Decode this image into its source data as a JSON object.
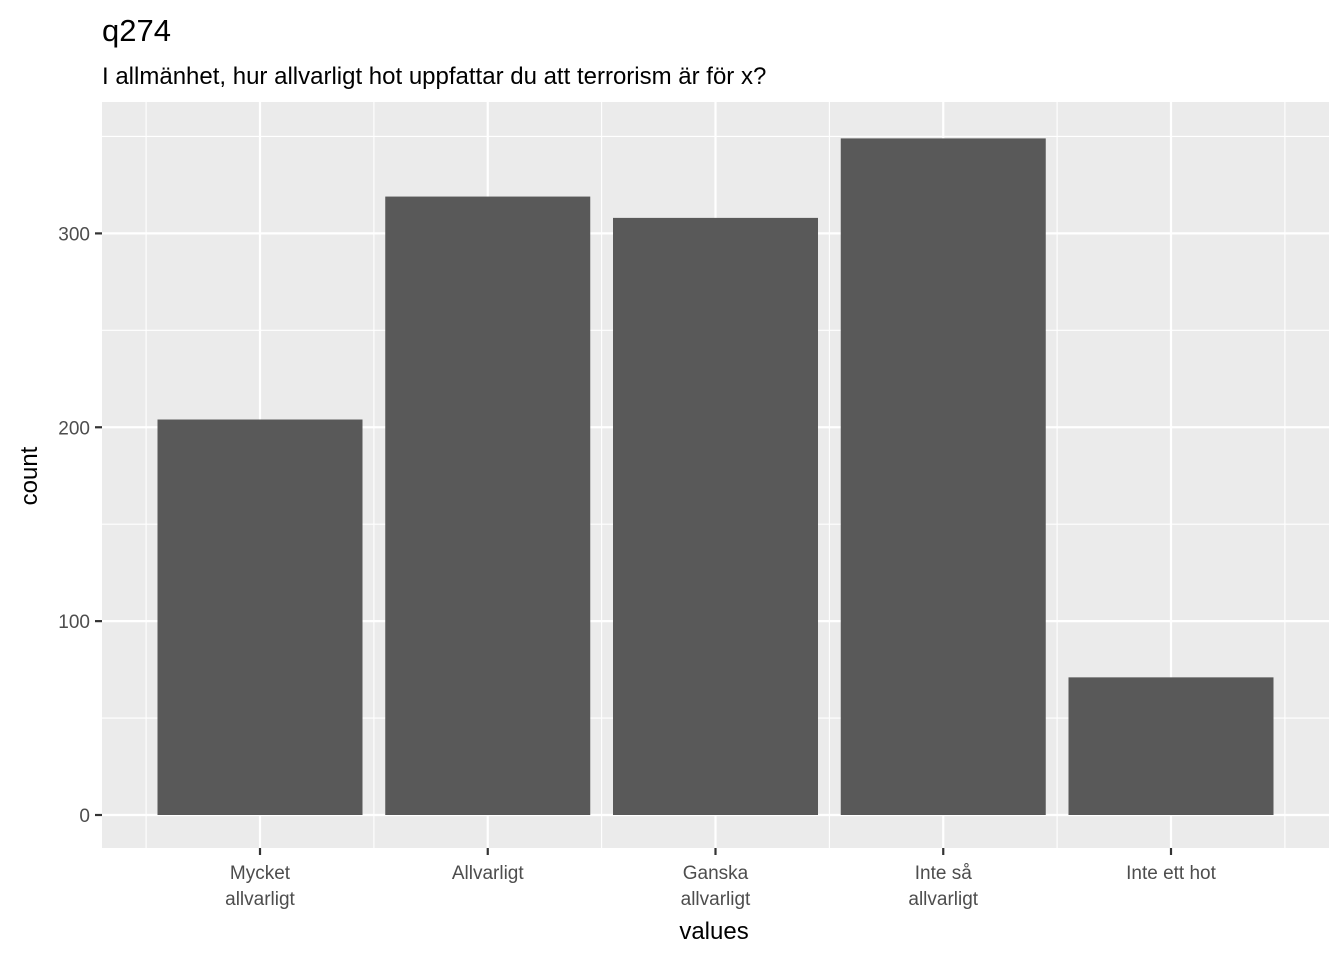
{
  "chart_data": {
    "type": "bar",
    "title": "q274",
    "subtitle": "I allmänhet, hur allvarligt hot uppfattar du att terrorism är för x?",
    "xlabel": "values",
    "ylabel": "count",
    "categories": [
      [
        "Mycket",
        "allvarligt"
      ],
      [
        "Allvarligt"
      ],
      [
        "Ganska",
        "allvarligt"
      ],
      [
        "Inte så",
        "allvarligt"
      ],
      [
        "Inte ett hot"
      ]
    ],
    "values": [
      204,
      319,
      308,
      349,
      71
    ],
    "ylim": [
      0,
      359
    ],
    "yticks": [
      0,
      100,
      200,
      300
    ],
    "colors": {
      "bar": "#595959",
      "panel": "#ebebeb",
      "grid": "#ffffff",
      "tick": "#333333"
    },
    "grid": true,
    "legend": "none"
  }
}
